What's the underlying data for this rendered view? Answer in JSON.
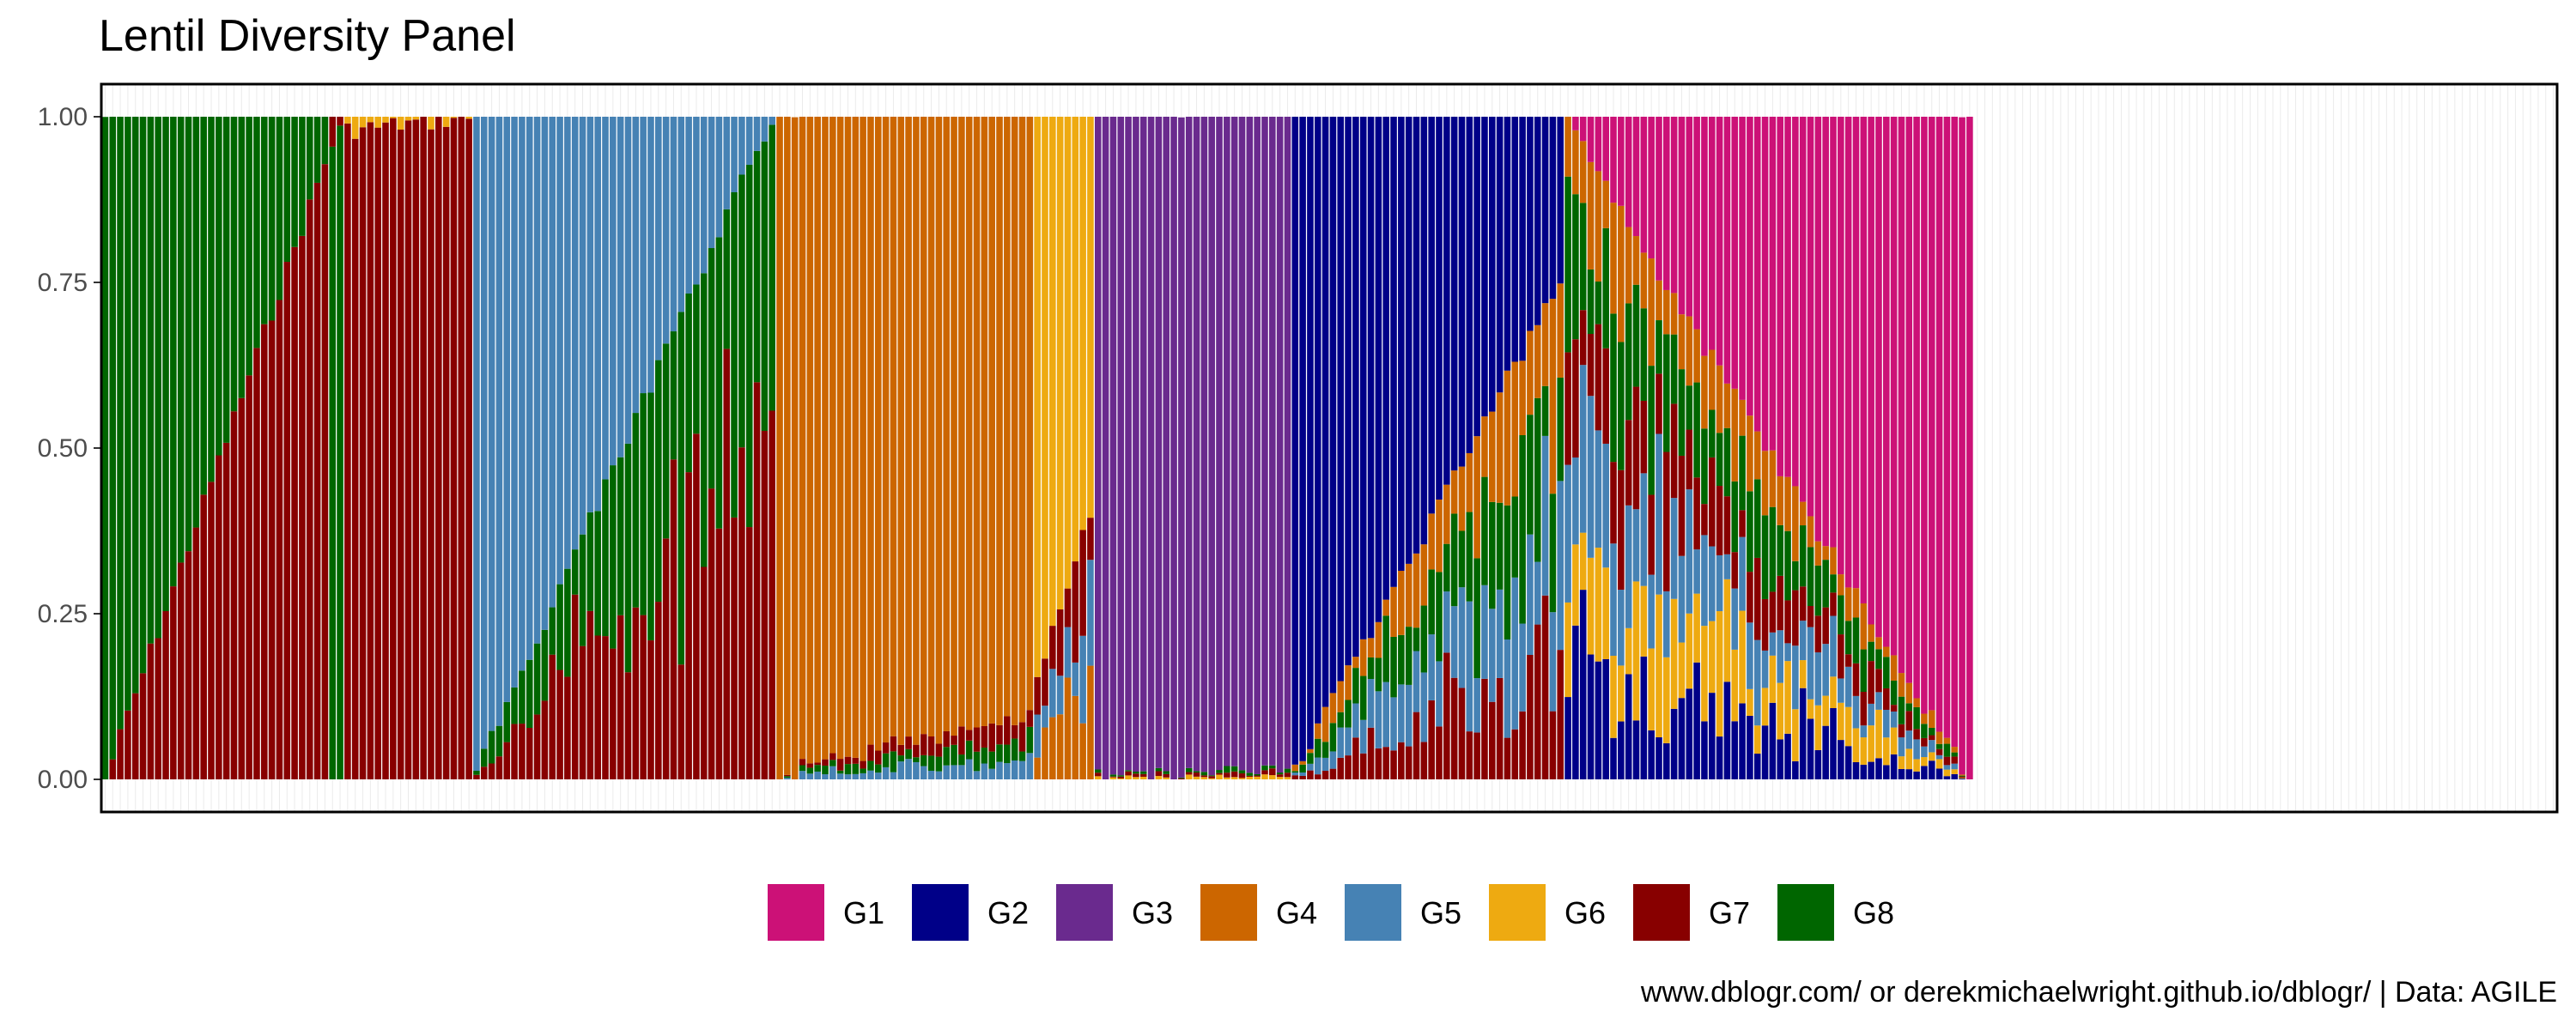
{
  "chart_data": {
    "type": "bar",
    "stacked": true,
    "title": "Lentil Diversity Panel",
    "caption": "www.dblogr.com/ or derekmichaelwright.github.io/dblogr/ | Data: AGILE",
    "xlabel": "",
    "ylabel": "",
    "ylim": [
      0,
      1
    ],
    "yticks": [
      "0.00",
      "0.25",
      "0.50",
      "0.75",
      "1.00"
    ],
    "grid": "vertical x-gridlines only, light grey",
    "legend_position": "bottom",
    "series": [
      {
        "name": "G1",
        "color": "#CC1177"
      },
      {
        "name": "G2",
        "color": "#000088"
      },
      {
        "name": "G3",
        "color": "#6A2A8E"
      },
      {
        "name": "G4",
        "color": "#CC6600"
      },
      {
        "name": "G5",
        "color": "#4682B4"
      },
      {
        "name": "G6",
        "color": "#EEAA11"
      },
      {
        "name": "G7",
        "color": "#880000"
      },
      {
        "name": "G8",
        "color": "#006600"
      }
    ],
    "sample_count": 324,
    "segments_note": "Each sample is a stacked bar of group memberships (G1-G8) summing to 1; blocks are ordered by dominant group, sorted by decreasing membership.",
    "blocks": [
      {
        "group": "G8",
        "n": 30,
        "mix": "G7",
        "start": 1.0,
        "end": 0.07
      },
      {
        "group": "G7",
        "n": 2,
        "mix": "G8",
        "start": 0.04,
        "end": 0.02
      },
      {
        "group": "G6",
        "n": 17,
        "mix": "G7",
        "start": 0.02,
        "end": 0.0
      },
      {
        "group": "G5",
        "n": 40,
        "mix": "G7+G8",
        "start": 0.99,
        "end": 0.0
      },
      {
        "group": "G4",
        "n": 34,
        "mix": "G5+G8+G7",
        "start": 0.99,
        "end": 0.9
      },
      {
        "group": "G6",
        "n": 8,
        "mix": "G4+G5+G7",
        "start": 0.85,
        "end": 0.6
      },
      {
        "group": "G3",
        "n": 26,
        "mix": "G6+G7+G8",
        "start": 1.0,
        "end": 0.98
      },
      {
        "group": "G2",
        "n": 36,
        "mix": "G7+G5+G8+G4",
        "start": 0.99,
        "end": 0.25
      },
      {
        "group": "G1",
        "n": 54,
        "mix": "G2+G6+G5+G7+G8+G4",
        "start": 0.01,
        "end": 1.0
      }
    ]
  }
}
